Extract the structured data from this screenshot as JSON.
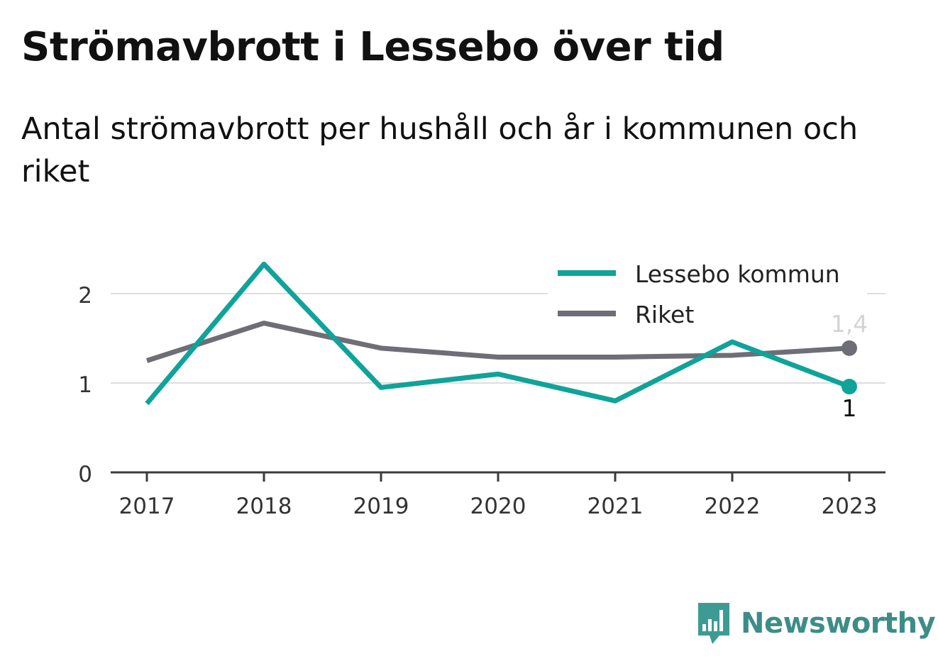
{
  "header": {
    "title": "Strömavbrott i Lessebo över tid",
    "subtitle": "Antal strömavbrott per hushåll och år i kommunen och riket"
  },
  "brand": {
    "name": "Newsworthy",
    "icon": "newsworthy-logo-icon",
    "color": "#3d9b94"
  },
  "chart_data": {
    "type": "line",
    "title": "Strömavbrott i Lessebo över tid",
    "subtitle": "Antal strömavbrott per hushåll och år i kommunen och riket",
    "xlabel": "",
    "ylabel": "",
    "categories": [
      "2017",
      "2018",
      "2019",
      "2020",
      "2021",
      "2022",
      "2023"
    ],
    "ylim": [
      0,
      2.5
    ],
    "yticks": [
      0,
      1,
      2
    ],
    "ytick_labels": [
      "0",
      "1",
      "2"
    ],
    "grid": true,
    "legend_position": "top-right",
    "series": [
      {
        "name": "Lessebo kommun",
        "color": "#0fa39a",
        "values": [
          0.77,
          2.33,
          0.95,
          1.1,
          0.8,
          1.46,
          0.96
        ],
        "end_label": "1"
      },
      {
        "name": "Riket",
        "color": "#6e6e76",
        "values": [
          1.25,
          1.67,
          1.39,
          1.29,
          1.29,
          1.31,
          1.39
        ],
        "end_label": "1,4"
      }
    ]
  }
}
